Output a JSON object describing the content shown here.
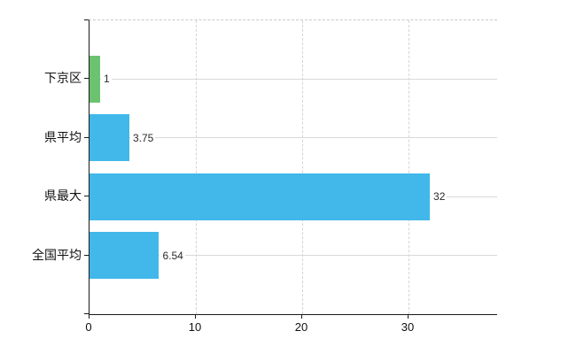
{
  "chart_data": {
    "type": "bar",
    "orientation": "horizontal",
    "title": "",
    "xlabel": "",
    "ylabel": "",
    "categories": [
      "下京区",
      "県平均",
      "県最大",
      "全国平均"
    ],
    "values": [
      1,
      3.75,
      32,
      6.54
    ],
    "value_labels": [
      "1",
      "3.75",
      "32",
      "6.54"
    ],
    "bar_colors": [
      "#6cc36f",
      "#41b8e9",
      "#41b8e9",
      "#41b8e9"
    ],
    "x_ticks": [
      0,
      10,
      20,
      30
    ],
    "x_tick_labels": [
      "0",
      "10",
      "20",
      "30"
    ],
    "xlim": [
      0,
      38.33
    ],
    "grid": true,
    "legend": false,
    "colors": {
      "bar_blue": "#41b8e9",
      "bar_green": "#6cc36f",
      "axis": "#1a1a1a",
      "gridline": "#d9d9d9",
      "background": "#ffffff"
    }
  }
}
